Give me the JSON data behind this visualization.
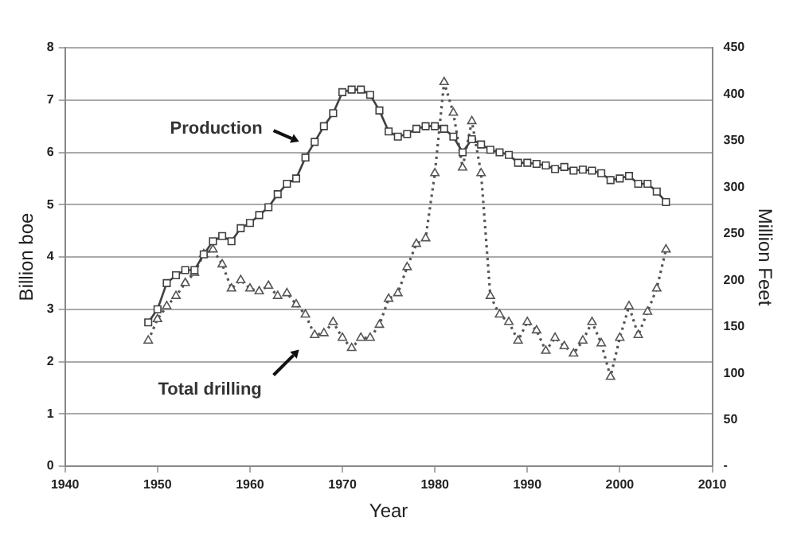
{
  "chart_data": {
    "type": "line",
    "xlabel": "Year",
    "ylabel": "Billion boe",
    "y2label": "Million Feet",
    "xlim": [
      1940,
      2010
    ],
    "xticks": [
      1940,
      1950,
      1960,
      1970,
      1980,
      1990,
      2000,
      2010
    ],
    "ylim": [
      0,
      8
    ],
    "yticks": [
      0,
      1,
      2,
      3,
      4,
      5,
      6,
      7,
      8
    ],
    "y2lim": [
      0,
      450
    ],
    "y2ticks": [
      {
        "value": 0,
        "label": "-"
      },
      50,
      100,
      150,
      200,
      250,
      300,
      350,
      400,
      450
    ],
    "grid": "y",
    "legend": false,
    "series": [
      {
        "name": "Production",
        "color": "#404040",
        "marker": "square",
        "line_style": "solid",
        "x": [
          1949,
          1950,
          1951,
          1952,
          1953,
          1954,
          1955,
          1956,
          1957,
          1958,
          1959,
          1960,
          1961,
          1962,
          1963,
          1964,
          1965,
          1966,
          1967,
          1968,
          1969,
          1970,
          1971,
          1972,
          1973,
          1974,
          1975,
          1976,
          1977,
          1978,
          1979,
          1980,
          1981,
          1982,
          1983,
          1984,
          1985,
          1986,
          1987,
          1988,
          1989,
          1990,
          1991,
          1992,
          1993,
          1994,
          1995,
          1996,
          1997,
          1998,
          1999,
          2000,
          2001,
          2002,
          2003,
          2004,
          2005
        ],
        "values": [
          2.75,
          3.0,
          3.5,
          3.65,
          3.75,
          3.75,
          4.05,
          4.3,
          4.4,
          4.3,
          4.55,
          4.65,
          4.8,
          4.95,
          5.2,
          5.4,
          5.5,
          5.9,
          6.2,
          6.5,
          6.75,
          7.15,
          7.2,
          7.2,
          7.1,
          6.8,
          6.4,
          6.3,
          6.35,
          6.45,
          6.5,
          6.5,
          6.45,
          6.3,
          6.0,
          6.25,
          6.15,
          6.05,
          6.0,
          5.95,
          5.8,
          5.8,
          5.78,
          5.75,
          5.68,
          5.72,
          5.65,
          5.67,
          5.65,
          5.6,
          5.47,
          5.5,
          5.55,
          5.4,
          5.4,
          5.25,
          5.05
        ]
      },
      {
        "name": "Total drilling",
        "color": "#555555",
        "marker": "triangle",
        "line_style": "dotted",
        "axis": "y2",
        "x": [
          1949,
          1950,
          1951,
          1952,
          1953,
          1954,
          1955,
          1956,
          1957,
          1958,
          1959,
          1960,
          1961,
          1962,
          1963,
          1964,
          1965,
          1966,
          1967,
          1968,
          1969,
          1970,
          1971,
          1972,
          1973,
          1974,
          1975,
          1976,
          1977,
          1978,
          1979,
          1980,
          1981,
          1982,
          1983,
          1984,
          1985,
          1986,
          1987,
          1988,
          1989,
          1990,
          1991,
          1992,
          1993,
          1994,
          1995,
          1996,
          1997,
          1998,
          1999,
          2000,
          2001,
          2002,
          2003,
          2004,
          2005
        ],
        "values": [
          135,
          158,
          172,
          183,
          197,
          208,
          228,
          233,
          217,
          191,
          200,
          191,
          188,
          194,
          183,
          186,
          174,
          163,
          141,
          143,
          155,
          138,
          127,
          138,
          138,
          152,
          180,
          186,
          214,
          239,
          245,
          315,
          413,
          380,
          321,
          371,
          315,
          183,
          163,
          155,
          135,
          155,
          146,
          124,
          138,
          129,
          121,
          135,
          155,
          132,
          96,
          138,
          172,
          141,
          166,
          191,
          233
        ]
      }
    ]
  }
}
